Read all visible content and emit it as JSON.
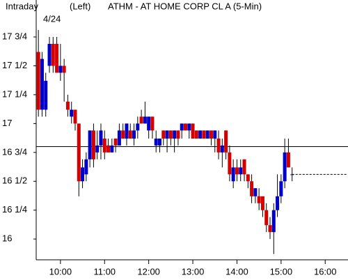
{
  "chart_data": {
    "type": "candlestick",
    "header": [
      "Intraday",
      "(Left)",
      "ATHM - AT HOME CORP CL A  (5-Min)"
    ],
    "date_label": "4/24",
    "x": [
      570,
      575,
      580,
      585,
      590,
      595,
      600,
      605,
      610,
      615,
      620,
      625,
      630,
      635,
      640,
      645,
      650,
      655,
      660,
      665,
      670,
      675,
      680,
      685,
      690,
      695,
      700,
      705,
      710,
      715,
      720,
      725,
      730,
      735,
      740,
      745,
      750,
      755,
      760,
      765,
      770,
      775,
      780,
      785,
      790,
      795,
      800,
      805,
      810,
      815,
      820,
      825,
      830,
      835,
      840,
      845,
      850,
      855,
      860,
      865,
      870,
      875,
      880,
      885,
      890,
      895,
      900,
      905,
      910,
      915
    ],
    "open": [
      17.62,
      17.12,
      17.12,
      17.5,
      17.69,
      17.69,
      17.44,
      17.5,
      17.19,
      17.06,
      17.12,
      17.0,
      16.5,
      16.56,
      16.69,
      16.94,
      16.75,
      16.81,
      16.87,
      16.81,
      16.75,
      16.87,
      16.81,
      16.94,
      16.87,
      16.94,
      16.87,
      16.94,
      17.06,
      17.0,
      16.94,
      17.06,
      16.81,
      16.81,
      16.94,
      16.87,
      16.94,
      16.87,
      16.94,
      16.94,
      17.0,
      16.94,
      17.0,
      16.94,
      16.87,
      16.94,
      16.87,
      16.94,
      16.87,
      16.87,
      16.75,
      16.94,
      16.75,
      16.5,
      16.62,
      16.56,
      16.69,
      16.56,
      16.5,
      16.37,
      16.37,
      16.37,
      16.25,
      16.12,
      16.06,
      16.25,
      16.37,
      16.5,
      16.75,
      16.56
    ],
    "high": [
      17.81,
      17.62,
      17.44,
      17.75,
      17.75,
      17.75,
      17.69,
      17.56,
      17.25,
      17.19,
      17.12,
      17.0,
      16.69,
      16.75,
      16.94,
      17.0,
      16.94,
      17.0,
      16.94,
      16.87,
      16.87,
      16.87,
      17.0,
      17.0,
      17.0,
      17.0,
      17.0,
      17.06,
      17.12,
      17.19,
      17.06,
      17.06,
      16.94,
      16.87,
      16.94,
      16.94,
      16.94,
      16.94,
      16.94,
      17.0,
      17.0,
      17.0,
      17.0,
      16.94,
      16.94,
      16.94,
      16.94,
      16.94,
      16.94,
      16.94,
      16.87,
      16.94,
      16.81,
      16.69,
      16.69,
      16.69,
      16.69,
      16.56,
      16.56,
      16.44,
      16.44,
      16.37,
      16.31,
      16.19,
      16.31,
      16.56,
      16.56,
      16.87,
      16.87,
      16.62
    ],
    "low": [
      17.06,
      17.06,
      17.06,
      17.44,
      17.44,
      17.44,
      17.37,
      17.19,
      17.06,
      17.0,
      16.94,
      16.37,
      16.44,
      16.5,
      16.62,
      16.62,
      16.69,
      16.69,
      16.69,
      16.75,
      16.75,
      16.75,
      16.81,
      16.87,
      16.81,
      16.87,
      16.81,
      16.87,
      17.0,
      17.0,
      16.87,
      16.87,
      16.75,
      16.75,
      16.81,
      16.75,
      16.81,
      16.75,
      16.81,
      16.87,
      16.94,
      16.87,
      16.87,
      16.87,
      16.87,
      16.87,
      16.87,
      16.81,
      16.75,
      16.69,
      16.62,
      16.69,
      16.5,
      16.44,
      16.5,
      16.5,
      16.5,
      16.44,
      16.31,
      16.31,
      16.25,
      16.19,
      16.06,
      16.0,
      15.87,
      16.19,
      16.31,
      16.44,
      16.62,
      16.5
    ],
    "close": [
      17.12,
      17.56,
      17.37,
      17.69,
      17.5,
      17.44,
      17.5,
      17.44,
      17.12,
      17.12,
      17.0,
      16.5,
      16.62,
      16.69,
      16.94,
      16.69,
      16.81,
      16.94,
      16.75,
      16.75,
      16.81,
      16.81,
      16.94,
      16.87,
      17.0,
      16.87,
      16.94,
      17.0,
      17.0,
      17.06,
      17.06,
      16.94,
      16.87,
      16.87,
      16.87,
      16.94,
      16.87,
      16.94,
      16.87,
      17.0,
      16.94,
      17.0,
      16.87,
      16.87,
      16.94,
      16.87,
      16.94,
      16.87,
      16.94,
      16.75,
      16.81,
      16.75,
      16.56,
      16.62,
      16.56,
      16.62,
      16.56,
      16.5,
      16.37,
      16.44,
      16.31,
      16.25,
      16.12,
      16.06,
      16.25,
      16.37,
      16.5,
      16.75,
      16.62,
      16.56
    ],
    "up_color": "#0000c8",
    "down_color": "#d40000",
    "reference_line": 16.8,
    "last_price": 16.56,
    "xlim": [
      567,
      991
    ],
    "xticks": [
      {
        "value": 600,
        "label": "10:00"
      },
      {
        "value": 660,
        "label": "11:00"
      },
      {
        "value": 720,
        "label": "12:00"
      },
      {
        "value": 780,
        "label": "13:00"
      },
      {
        "value": 840,
        "label": "14:00"
      },
      {
        "value": 900,
        "label": "15:00"
      },
      {
        "value": 960,
        "label": "16:00"
      }
    ],
    "ylim": [
      15.82,
      18.07
    ],
    "yticks": [
      {
        "value": 16,
        "label": "16"
      },
      {
        "value": 16.25,
        "label": "16 1/4"
      },
      {
        "value": 16.5,
        "label": "16 1/2"
      },
      {
        "value": 16.75,
        "label": "16 3/4"
      },
      {
        "value": 17,
        "label": "17"
      },
      {
        "value": 17.25,
        "label": "17 1/4"
      },
      {
        "value": 17.5,
        "label": "17 1/2"
      },
      {
        "value": 17.75,
        "label": "17 3/4"
      }
    ]
  }
}
